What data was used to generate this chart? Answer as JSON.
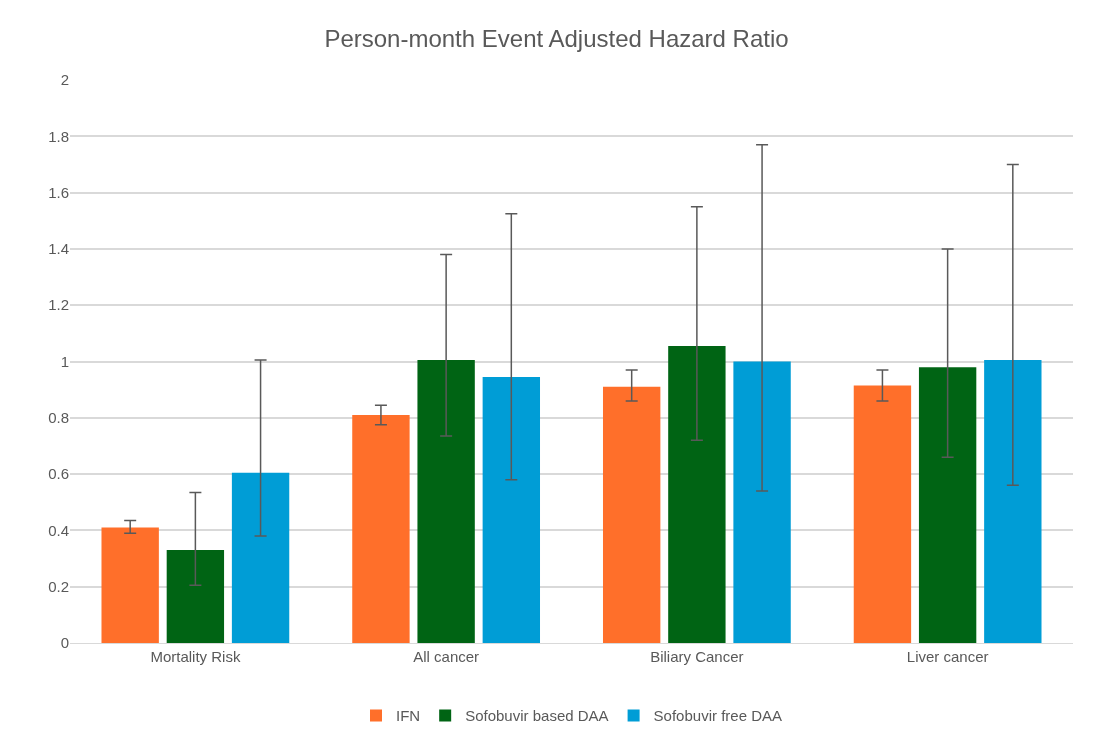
{
  "chart_data": {
    "type": "bar",
    "title": "Person-month Event Adjusted Hazard Ratio",
    "categories": [
      "Mortality Risk",
      "All cancer",
      "Biliary Cancer",
      "Liver cancer"
    ],
    "series": [
      {
        "name": "IFN",
        "color": "#ff6f2a",
        "values": [
          0.41,
          0.81,
          0.91,
          0.915
        ],
        "errors": [
          [
            0.39,
            0.435
          ],
          [
            0.775,
            0.845
          ],
          [
            0.86,
            0.97
          ],
          [
            0.86,
            0.97
          ]
        ]
      },
      {
        "name": "Sofobuvir based DAA",
        "color": "#006414",
        "values": [
          0.33,
          1.005,
          1.055,
          0.98
        ],
        "errors": [
          [
            0.205,
            0.535
          ],
          [
            0.735,
            1.38
          ],
          [
            0.72,
            1.55
          ],
          [
            0.66,
            1.4
          ]
        ]
      },
      {
        "name": "Sofobuvir free DAA",
        "color": "#009dd6",
        "values": [
          0.605,
          0.945,
          1.0,
          1.005
        ],
        "errors": [
          [
            0.38,
            1.005
          ],
          [
            0.58,
            1.525
          ],
          [
            0.54,
            1.77
          ],
          [
            0.56,
            1.7
          ]
        ]
      }
    ],
    "ylim": [
      0,
      2
    ],
    "yticks": [
      0,
      0.2,
      0.4,
      0.6,
      0.8,
      1,
      1.2,
      1.4,
      1.6,
      1.8,
      2
    ],
    "grid": "y",
    "legend": "bottom"
  }
}
